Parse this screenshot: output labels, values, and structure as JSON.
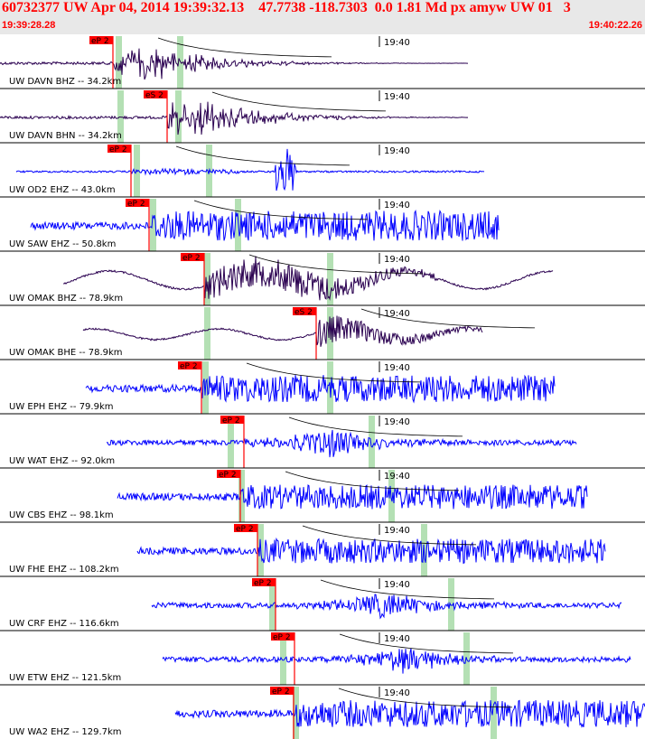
{
  "header": {
    "title": "60732377 UW Apr 04, 2014 19:39:32.13    47.7738 -118.7303  0.0 1.81 Md px amyw UW 01   3",
    "start_time": "19:39:28.28",
    "end_time": "19:40:22.26"
  },
  "colors": {
    "header_bg": "#e8e8e8",
    "header_text": "#ff0000",
    "trace_blue": "#0000ff",
    "trace_navy": "#2a0050",
    "pick_red": "#ff0000",
    "arrival_band": "#b4e0b4",
    "separator": "#000000"
  },
  "minute_label": "19:40",
  "traces": [
    {
      "label": "UW DAVN BHZ -- 34.2km",
      "pick": "eP 2",
      "color": "navy"
    },
    {
      "label": "UW DAVN BHN -- 34.2km",
      "pick": "eS 2",
      "color": "navy"
    },
    {
      "label": "UW OD2 EHZ -- 43.0km",
      "pick": "eP 2",
      "color": "blue"
    },
    {
      "label": "UW SAW EHZ -- 50.8km",
      "pick": "eP 2",
      "color": "blue"
    },
    {
      "label": "UW OMAK BHZ -- 78.9km",
      "pick": "eP 2",
      "color": "navy"
    },
    {
      "label": "UW OMAK BHE -- 78.9km",
      "pick": "eS 2",
      "color": "navy"
    },
    {
      "label": "UW EPH EHZ -- 79.9km",
      "pick": "eP 2",
      "color": "blue"
    },
    {
      "label": "UW WAT EHZ -- 92.0km",
      "pick": "eP 2",
      "color": "blue"
    },
    {
      "label": "UW CBS EHZ -- 98.1km",
      "pick": "eP 2",
      "color": "blue"
    },
    {
      "label": "UW FHE EHZ -- 108.2km",
      "pick": "eP 2",
      "color": "blue"
    },
    {
      "label": "UW CRF EHZ -- 116.6km",
      "pick": "eP 2",
      "color": "blue"
    },
    {
      "label": "UW ETW EHZ -- 121.5km",
      "pick": "eP 2",
      "color": "blue"
    },
    {
      "label": "UW WA2 EHZ -- 129.7km",
      "pick": "eP 2",
      "color": "blue"
    }
  ]
}
